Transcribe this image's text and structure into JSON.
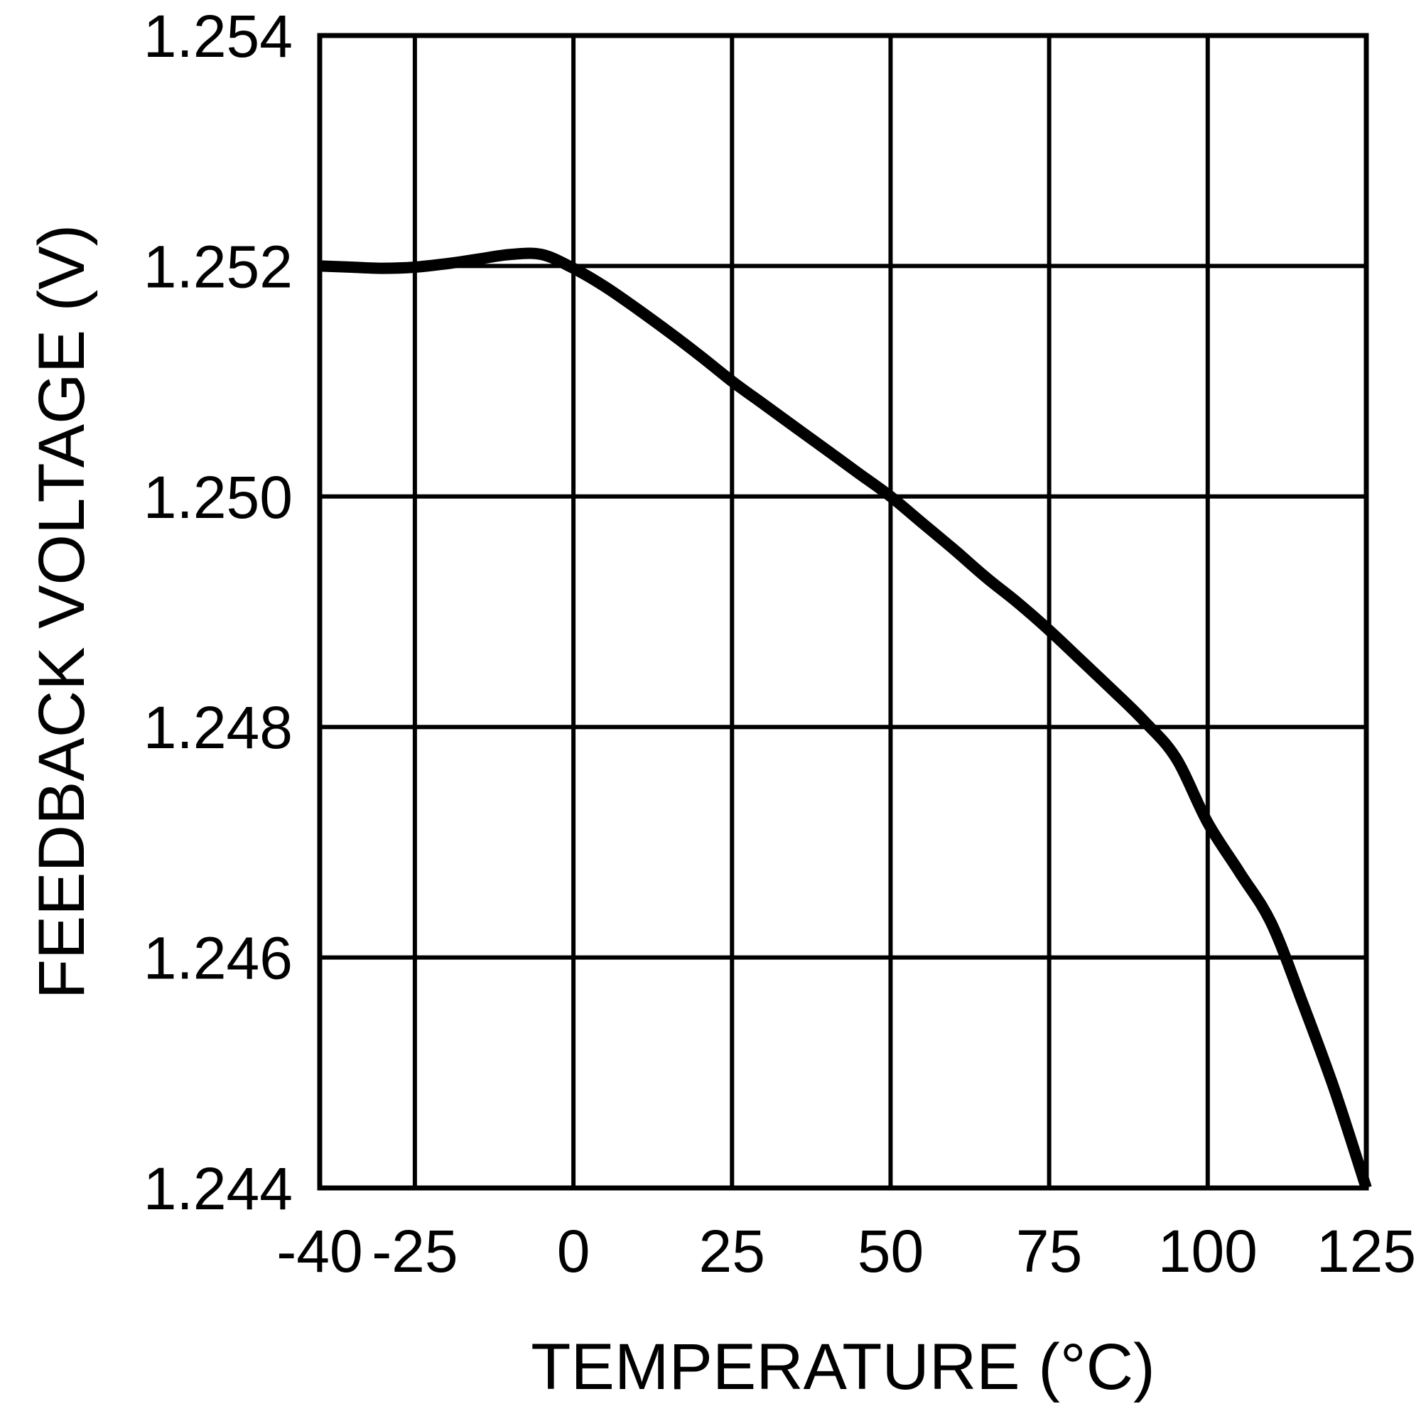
{
  "chart_data": {
    "type": "line",
    "title": "",
    "xlabel": "TEMPERATURE (°C)",
    "ylabel": "FEEDBACK VOLTAGE (V)",
    "xlim": [
      -40,
      125
    ],
    "ylim": [
      1.244,
      1.254
    ],
    "x_ticks": [
      -40,
      -25,
      0,
      25,
      50,
      75,
      100,
      125
    ],
    "y_ticks": [
      1.244,
      1.246,
      1.248,
      1.25,
      1.252,
      1.254
    ],
    "y_tick_decimals": 3,
    "grid": true,
    "legend": "none",
    "line_color": "#000000",
    "grid_color": "#000000",
    "background_color": "#ffffff",
    "series": [
      {
        "name": "feedback-voltage",
        "x": [
          -40,
          -35,
          -30,
          -25,
          -20,
          -15,
          -10,
          -5,
          0,
          5,
          10,
          15,
          20,
          25,
          30,
          35,
          40,
          45,
          50,
          55,
          60,
          65,
          70,
          75,
          80,
          85,
          90,
          95,
          100,
          105,
          110,
          115,
          120,
          125
        ],
        "y": [
          1.252,
          1.25199,
          1.25198,
          1.25199,
          1.25202,
          1.25206,
          1.2521,
          1.2521,
          1.25198,
          1.25182,
          1.25163,
          1.25143,
          1.25122,
          1.251,
          1.2508,
          1.2506,
          1.2504,
          1.2502,
          1.25,
          1.24977,
          1.24954,
          1.2493,
          1.24908,
          1.24884,
          1.24858,
          1.24832,
          1.24805,
          1.24773,
          1.24717,
          1.24674,
          1.2463,
          1.2456,
          1.24485,
          1.244
        ]
      }
    ]
  }
}
